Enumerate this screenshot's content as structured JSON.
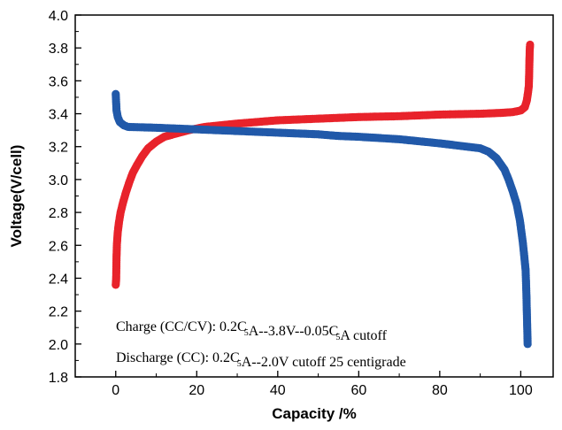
{
  "chart_data": {
    "type": "scatter",
    "title": "",
    "xlabel": "Capacity  /%",
    "ylabel": "Voltage(V/cell)",
    "xlim": [
      -10,
      108
    ],
    "ylim": [
      1.8,
      4.0
    ],
    "x_ticks": [
      0,
      20,
      40,
      60,
      80,
      100
    ],
    "x_tick_labels": [
      "0",
      "20",
      "40",
      "60",
      "80",
      "100"
    ],
    "y_ticks": [
      1.8,
      2.0,
      2.2,
      2.4,
      2.6,
      2.8,
      3.0,
      3.2,
      3.4,
      3.6,
      3.8,
      4.0
    ],
    "y_tick_labels": [
      "1.8",
      "2.0",
      "2.2",
      "2.4",
      "2.6",
      "2.8",
      "3.0",
      "3.2",
      "3.4",
      "3.6",
      "3.8",
      "4.0"
    ],
    "grid": false,
    "legend": "none",
    "series": [
      {
        "color": "#e8232b",
        "points": [
          [
            0,
            2.36
          ],
          [
            0.1,
            2.39
          ],
          [
            0.15,
            2.46
          ],
          [
            0.2,
            2.53
          ],
          [
            0.3,
            2.61
          ],
          [
            0.5,
            2.68
          ],
          [
            0.8,
            2.74
          ],
          [
            1.2,
            2.8
          ],
          [
            1.8,
            2.86
          ],
          [
            2.5,
            2.92
          ],
          [
            3.3,
            2.98
          ],
          [
            4.2,
            3.04
          ],
          [
            5.3,
            3.09
          ],
          [
            6.5,
            3.14
          ],
          [
            8,
            3.19
          ],
          [
            10,
            3.23
          ],
          [
            12,
            3.26
          ],
          [
            15,
            3.28
          ],
          [
            18,
            3.3
          ],
          [
            22,
            3.32
          ],
          [
            26,
            3.33
          ],
          [
            30,
            3.34
          ],
          [
            35,
            3.35
          ],
          [
            40,
            3.36
          ],
          [
            50,
            3.37
          ],
          [
            60,
            3.38
          ],
          [
            70,
            3.385
          ],
          [
            80,
            3.395
          ],
          [
            90,
            3.4
          ],
          [
            95,
            3.405
          ],
          [
            98,
            3.41
          ],
          [
            100,
            3.42
          ],
          [
            101,
            3.44
          ],
          [
            101.5,
            3.48
          ],
          [
            101.8,
            3.53
          ],
          [
            102,
            3.57
          ],
          [
            102.1,
            3.67
          ],
          [
            102.2,
            3.78
          ],
          [
            102.3,
            3.82
          ]
        ]
      },
      {
        "color": "#2159a9",
        "points": [
          [
            0,
            3.52
          ],
          [
            0.2,
            3.42
          ],
          [
            0.5,
            3.38
          ],
          [
            1,
            3.35
          ],
          [
            2,
            3.33
          ],
          [
            3,
            3.32
          ],
          [
            10,
            3.315
          ],
          [
            20,
            3.305
          ],
          [
            30,
            3.295
          ],
          [
            40,
            3.285
          ],
          [
            50,
            3.275
          ],
          [
            55,
            3.265
          ],
          [
            60,
            3.26
          ],
          [
            70,
            3.245
          ],
          [
            80,
            3.22
          ],
          [
            85,
            3.205
          ],
          [
            90,
            3.19
          ],
          [
            92,
            3.17
          ],
          [
            94,
            3.13
          ],
          [
            96,
            3.06
          ],
          [
            97,
            3.0
          ],
          [
            98,
            2.93
          ],
          [
            99,
            2.85
          ],
          [
            99.8,
            2.75
          ],
          [
            100.5,
            2.62
          ],
          [
            100.8,
            2.55
          ],
          [
            101,
            2.5
          ],
          [
            101.2,
            2.45
          ],
          [
            101.3,
            2.38
          ],
          [
            101.4,
            2.3
          ],
          [
            101.5,
            2.2
          ],
          [
            101.6,
            2.1
          ],
          [
            101.7,
            2.0
          ]
        ]
      }
    ],
    "annotations": [
      {
        "parts": [
          {
            "t": "Charge (CC/CV): 0.2C"
          },
          {
            "t": "5",
            "sub": true
          },
          {
            "t": "A--3.8V--0.05C"
          },
          {
            "t": "5",
            "sub": true
          },
          {
            "t": "A cutoff"
          }
        ]
      },
      {
        "parts": [
          {
            "t": "Discharge (CC):  0.2C"
          },
          {
            "t": "5",
            "sub": true
          },
          {
            "t": "A--2.0V cutoff    25 centigrade"
          }
        ]
      }
    ]
  }
}
